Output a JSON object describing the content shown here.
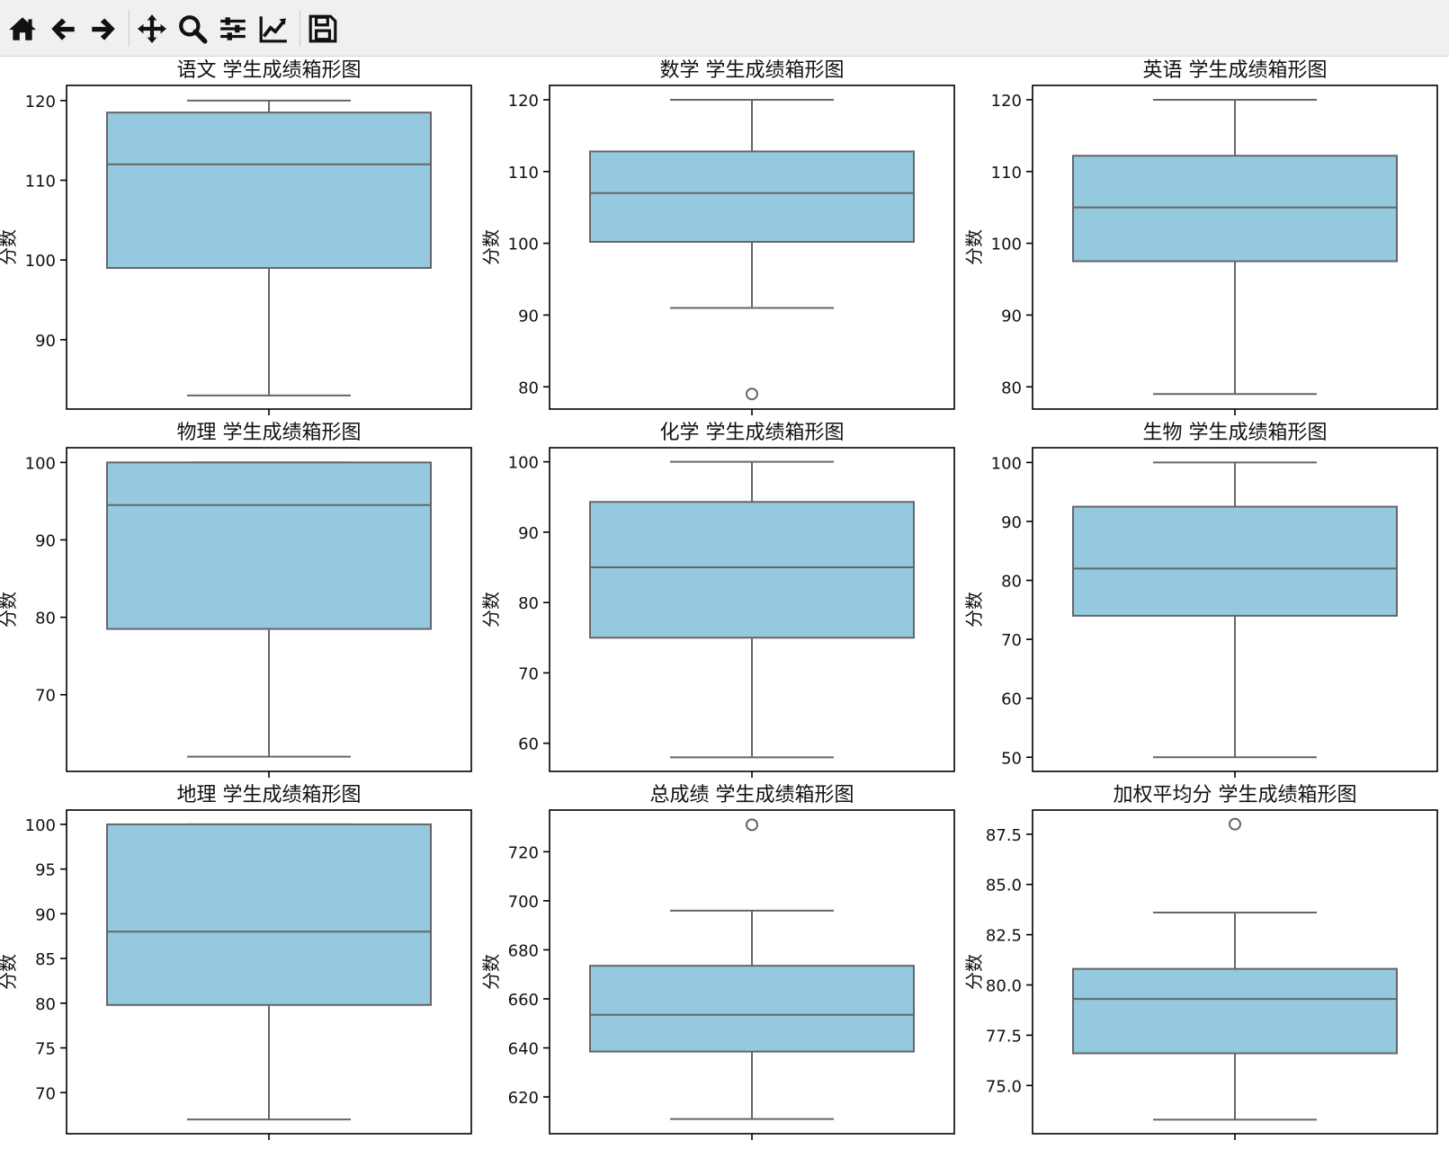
{
  "toolbar": {
    "buttons": [
      {
        "name": "home-icon"
      },
      {
        "name": "back-arrow-icon"
      },
      {
        "name": "forward-arrow-icon"
      },
      {
        "name": "pan-icon"
      },
      {
        "name": "zoom-icon"
      },
      {
        "name": "configure-subplots-icon"
      },
      {
        "name": "edit-axis-icon"
      },
      {
        "name": "save-icon"
      }
    ]
  },
  "colors": {
    "box_fill": "#94c9df",
    "box_edge": "#666666",
    "axes_frame": "#000000",
    "toolbar_icon": "#111111"
  },
  "chart_data": [
    {
      "type": "box",
      "title": "语文 学生成绩箱形图",
      "ylabel": "分数",
      "ylim": [
        81.3,
        121.9
      ],
      "yticks": [
        90,
        100,
        110,
        120
      ],
      "tick_labels": [
        "90",
        "100",
        "110",
        "120"
      ],
      "stats": {
        "whisker_low": 83,
        "q1": 99,
        "median": 112,
        "q3": 118.5,
        "whisker_high": 120
      },
      "outliers": []
    },
    {
      "type": "box",
      "title": "数学 学生成绩箱形图",
      "ylabel": "分数",
      "ylim": [
        76.9,
        122.0
      ],
      "yticks": [
        80,
        90,
        100,
        110,
        120
      ],
      "tick_labels": [
        "80",
        "90",
        "100",
        "110",
        "120"
      ],
      "stats": {
        "whisker_low": 91,
        "q1": 100.2,
        "median": 107,
        "q3": 112.8,
        "whisker_high": 120
      },
      "outliers": [
        79
      ]
    },
    {
      "type": "box",
      "title": "英语 学生成绩箱形图",
      "ylabel": "分数",
      "ylim": [
        76.9,
        122.0
      ],
      "yticks": [
        80,
        90,
        100,
        110,
        120
      ],
      "tick_labels": [
        "80",
        "90",
        "100",
        "110",
        "120"
      ],
      "stats": {
        "whisker_low": 79,
        "q1": 97.5,
        "median": 105,
        "q3": 112.2,
        "whisker_high": 120
      },
      "outliers": []
    },
    {
      "type": "box",
      "title": "物理 学生成绩箱形图",
      "ylabel": "分数",
      "ylim": [
        60.1,
        101.9
      ],
      "yticks": [
        70,
        80,
        90,
        100
      ],
      "tick_labels": [
        "70",
        "80",
        "90",
        "100"
      ],
      "stats": {
        "whisker_low": 62,
        "q1": 78.5,
        "median": 94.5,
        "q3": 100,
        "whisker_high": 100
      },
      "outliers": []
    },
    {
      "type": "box",
      "title": "化学 学生成绩箱形图",
      "ylabel": "分数",
      "ylim": [
        56.0,
        102.0
      ],
      "yticks": [
        60,
        70,
        80,
        90,
        100
      ],
      "tick_labels": [
        "60",
        "70",
        "80",
        "90",
        "100"
      ],
      "stats": {
        "whisker_low": 58,
        "q1": 75,
        "median": 85,
        "q3": 94.3,
        "whisker_high": 100
      },
      "outliers": []
    },
    {
      "type": "box",
      "title": "生物 学生成绩箱形图",
      "ylabel": "分数",
      "ylim": [
        47.6,
        102.5
      ],
      "yticks": [
        50,
        60,
        70,
        80,
        90,
        100
      ],
      "tick_labels": [
        "50",
        "60",
        "70",
        "80",
        "90",
        "100"
      ],
      "stats": {
        "whisker_low": 50,
        "q1": 74,
        "median": 82,
        "q3": 92.5,
        "whisker_high": 100
      },
      "outliers": []
    },
    {
      "type": "box",
      "title": "地理 学生成绩箱形图",
      "ylabel": "分数",
      "ylim": [
        65.4,
        101.6
      ],
      "yticks": [
        70,
        75,
        80,
        85,
        90,
        95,
        100
      ],
      "tick_labels": [
        "70",
        "75",
        "80",
        "85",
        "90",
        "95",
        "100"
      ],
      "stats": {
        "whisker_low": 67,
        "q1": 79.8,
        "median": 88,
        "q3": 100,
        "whisker_high": 100
      },
      "outliers": []
    },
    {
      "type": "box",
      "title": "总成绩 学生成绩箱形图",
      "ylabel": "分数",
      "ylim": [
        605.0,
        737.0
      ],
      "yticks": [
        620,
        640,
        660,
        680,
        700,
        720
      ],
      "tick_labels": [
        "620",
        "640",
        "660",
        "680",
        "700",
        "720"
      ],
      "stats": {
        "whisker_low": 611,
        "q1": 638.5,
        "median": 653.5,
        "q3": 673.5,
        "whisker_high": 696
      },
      "outliers": [
        731
      ]
    },
    {
      "type": "box",
      "title": "加权平均分 学生成绩箱形图",
      "ylabel": "分数",
      "ylim": [
        72.6,
        88.7
      ],
      "yticks": [
        75.0,
        77.5,
        80.0,
        82.5,
        85.0,
        87.5
      ],
      "tick_labels": [
        "75.0",
        "77.5",
        "80.0",
        "82.5",
        "85.0",
        "87.5"
      ],
      "stats": {
        "whisker_low": 73.3,
        "q1": 76.6,
        "median": 79.3,
        "q3": 80.8,
        "whisker_high": 83.6
      },
      "outliers": [
        88.0
      ]
    }
  ]
}
